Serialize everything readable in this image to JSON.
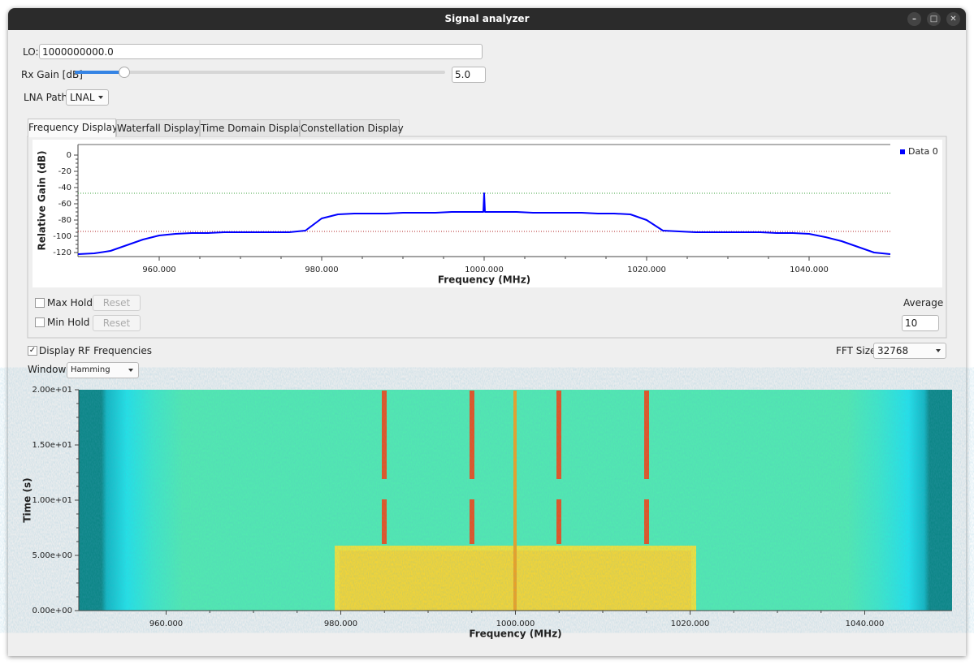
{
  "window": {
    "title": "Signal analyzer"
  },
  "controls": {
    "lo_label": "LO:",
    "lo_value": "1000000000.0",
    "rx_gain_label": "Rx Gain [dB]",
    "rx_gain_value": "5.0",
    "lna_label": "LNA Path:",
    "lna_value": "LNAL"
  },
  "tabs": [
    "Frequency Display",
    "Waterfall Display",
    "Time Domain Display",
    "Constellation Display"
  ],
  "panel": {
    "max_hold": "Max Hold",
    "min_hold": "Min Hold",
    "reset_buttons": [
      "Reset",
      "Reset"
    ],
    "average_label": "Average",
    "average_value": "10"
  },
  "options": {
    "display_rf": "Display RF Frequencies",
    "fft_label": "FFT Size:",
    "fft_value": "32768",
    "window_label": "Window:",
    "window_value": "Hamming"
  },
  "chart_data": [
    {
      "type": "line",
      "x_label": "Frequency (MHz)",
      "y_label": "Relative Gain (dB)",
      "x": [
        950,
        952,
        954,
        956,
        958,
        960,
        962,
        964,
        966,
        968,
        970,
        972,
        974,
        976,
        978,
        980,
        982,
        984,
        986,
        988,
        990,
        992,
        994,
        996,
        998,
        999.9,
        1000,
        1000.1,
        1002,
        1004,
        1006,
        1008,
        1010,
        1012,
        1014,
        1016,
        1018,
        1020,
        1022,
        1024,
        1026,
        1028,
        1030,
        1032,
        1034,
        1036,
        1038,
        1040,
        1042,
        1044,
        1046,
        1048,
        1050
      ],
      "series": [
        {
          "name": "Data 0",
          "color": "#0000ff",
          "values": [
            -122,
            -121,
            -118,
            -111,
            -104,
            -99,
            -97,
            -96,
            -96,
            -95,
            -95,
            -95,
            -95,
            -95,
            -93,
            -78,
            -73,
            -72,
            -72,
            -72,
            -71,
            -71,
            -71,
            -70,
            -70,
            -70,
            -47,
            -70,
            -70,
            -70,
            -71,
            -71,
            -71,
            -71,
            -72,
            -72,
            -73,
            -80,
            -93,
            -94,
            -95,
            -95,
            -95,
            -95,
            -95,
            -96,
            -96,
            -97,
            -101,
            -106,
            -113,
            -120,
            -122
          ]
        }
      ],
      "xlim": [
        950,
        1050
      ],
      "ylim": [
        -125,
        13
      ],
      "xticks": [
        {
          "value": 960,
          "label": "960.000"
        },
        {
          "value": 980,
          "label": "980.000"
        },
        {
          "value": 1000,
          "label": "1000.000"
        },
        {
          "value": 1020,
          "label": "1020.000"
        },
        {
          "value": 1040,
          "label": "1040.000"
        }
      ],
      "yticks": [
        0,
        -20,
        -40,
        -60,
        -80,
        -100,
        -120
      ],
      "threshold_lines": [
        {
          "value": -47,
          "color": "#3aa03a"
        },
        {
          "value": -94,
          "color": "#b02020"
        }
      ],
      "legend": "right"
    },
    {
      "type": "heatmap",
      "x_label": "Frequency (MHz)",
      "y_label": "Time (s)",
      "xlim": [
        950,
        1050
      ],
      "ylim": [
        0,
        20
      ],
      "xticks": [
        {
          "value": 960,
          "label": "960.000"
        },
        {
          "value": 980,
          "label": "980.000"
        },
        {
          "value": 1000,
          "label": "1000.000"
        },
        {
          "value": 1020,
          "label": "1020.000"
        },
        {
          "value": 1040,
          "label": "1040.000"
        }
      ],
      "yticks": [
        {
          "value": 0,
          "label": "0.00e+00"
        },
        {
          "value": 5,
          "label": "5.00e+00"
        },
        {
          "value": 10,
          "label": "1.00e+01"
        },
        {
          "value": 15,
          "label": "1.50e+01"
        },
        {
          "value": 20,
          "label": "2.00e+01"
        }
      ]
    }
  ]
}
